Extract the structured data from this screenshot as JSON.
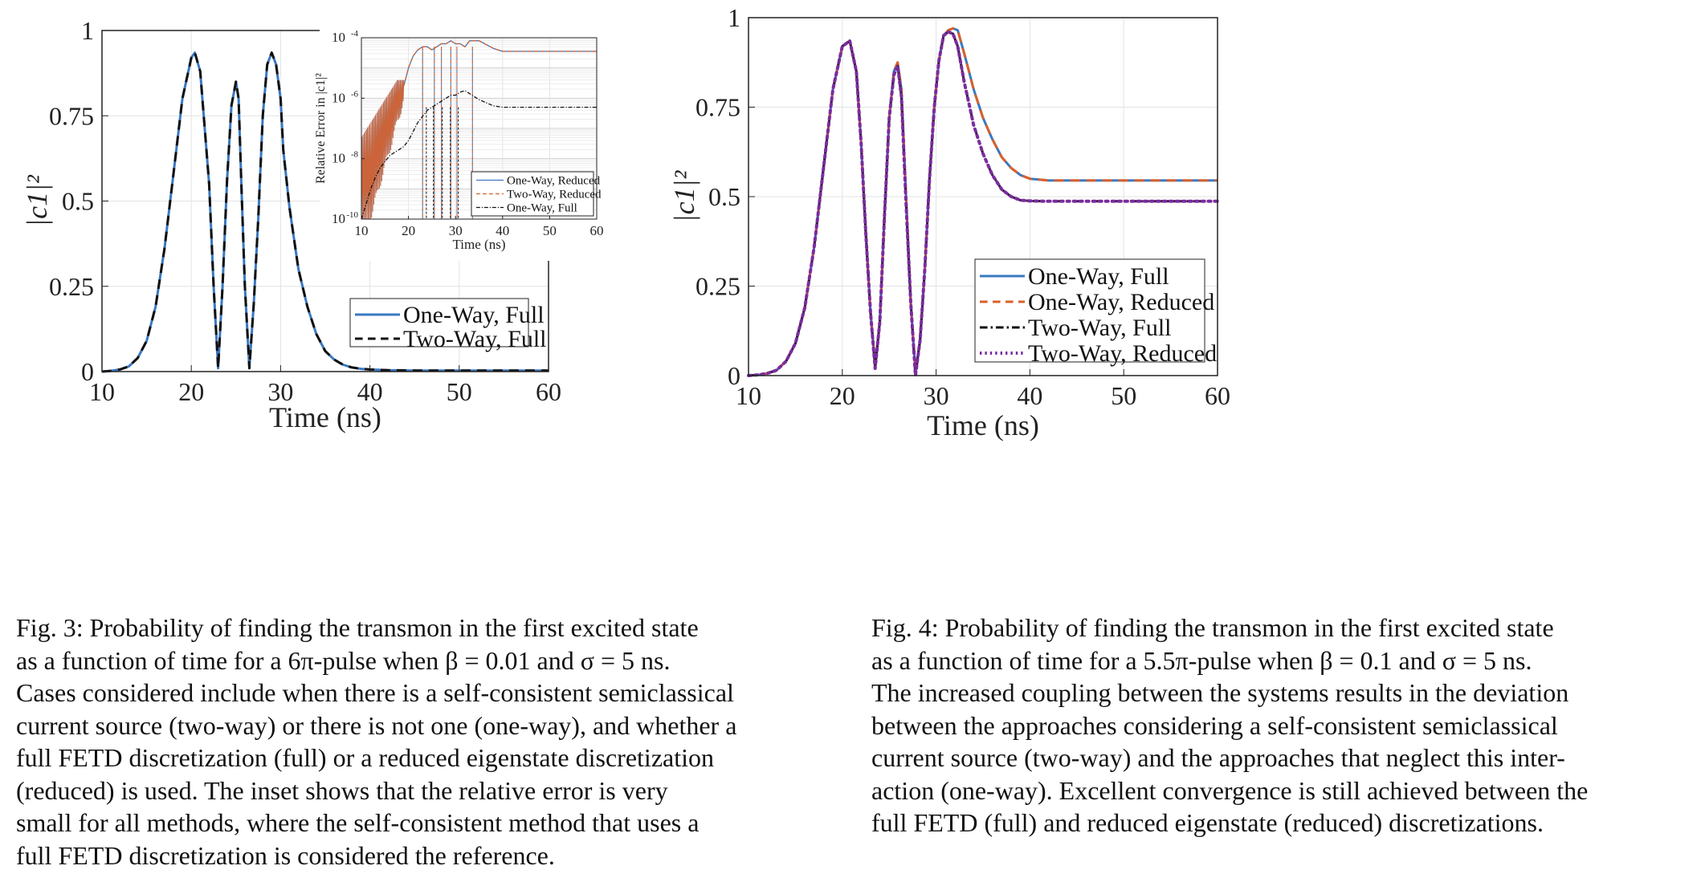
{
  "figures": [
    {
      "id": "fig3",
      "caption_lines": [
        "Fig. 3: Probability of finding the transmon in the first excited state",
        "as a function of time for a 6π-pulse when β = 0.01 and σ = 5 ns.",
        "Cases considered include when there is a self-consistent semiclassical",
        "current source (two-way) or there is not one (one-way), and whether a",
        "full FETD discretization (full) or a reduced eigenstate discretization",
        "(reduced) is used. The inset shows that the relative error is very",
        "small for all methods, where the self-consistent method that uses a",
        "full FETD discretization is considered the reference."
      ]
    },
    {
      "id": "fig4",
      "caption_lines": [
        "Fig. 4: Probability of finding the transmon in the first excited state",
        "as a function of time for a 5.5π-pulse when β = 0.1 and σ = 5 ns.",
        "The increased coupling between the systems results in the deviation",
        "between the approaches considering a self-consistent semiclassical",
        "current source (two-way) and the approaches that neglect this inter-",
        "action (one-way). Excellent convergence is still achieved between the",
        "full FETD (full) and reduced eigenstate (reduced) discretizations."
      ]
    }
  ],
  "colors": {
    "blue": "#3a78c0",
    "orange": "#d9602a",
    "black": "#111111",
    "purple": "#7b2c9e",
    "grid": "#e3e3e3"
  },
  "chart_data": [
    {
      "id": "fig3-main",
      "type": "line",
      "title": "",
      "xlabel": "Time (ns)",
      "ylabel": "|c1|²",
      "xlim": [
        10,
        60
      ],
      "ylim": [
        0,
        1
      ],
      "xticks": [
        10,
        20,
        30,
        40,
        50,
        60
      ],
      "yticks": [
        0,
        0.25,
        0.5,
        0.75,
        1
      ],
      "ytick_labels": [
        "0",
        "0.25",
        "0.5",
        "0.75",
        "1"
      ],
      "grid": true,
      "legend_position": "lower-right",
      "series": [
        {
          "name": "One-Way, Full",
          "style": "solid",
          "color": "#3a78c0",
          "x": [
            10,
            11,
            12,
            13,
            14,
            15,
            16,
            17,
            18,
            19,
            20,
            20.4,
            21,
            22,
            22.5,
            23,
            23.5,
            24,
            24.5,
            25,
            25.3,
            25.6,
            26,
            26.5,
            27,
            27.5,
            28,
            28.5,
            29,
            29.5,
            30,
            30.3,
            31,
            32,
            33,
            34,
            35,
            36,
            37,
            38,
            39,
            40,
            42,
            45,
            50,
            55,
            60
          ],
          "y": [
            0,
            0.002,
            0.006,
            0.015,
            0.04,
            0.09,
            0.19,
            0.36,
            0.58,
            0.8,
            0.92,
            0.935,
            0.88,
            0.55,
            0.25,
            0.01,
            0.25,
            0.56,
            0.78,
            0.85,
            0.8,
            0.55,
            0.25,
            0.01,
            0.2,
            0.45,
            0.75,
            0.9,
            0.935,
            0.9,
            0.8,
            0.65,
            0.48,
            0.3,
            0.19,
            0.11,
            0.06,
            0.035,
            0.02,
            0.012,
            0.008,
            0.006,
            0.004,
            0.003,
            0.003,
            0.003,
            0.003
          ]
        },
        {
          "name": "Two-Way, Full",
          "style": "dashed",
          "color": "#111111",
          "x": [
            10,
            11,
            12,
            13,
            14,
            15,
            16,
            17,
            18,
            19,
            20,
            20.4,
            21,
            22,
            22.5,
            23,
            23.5,
            24,
            24.5,
            25,
            25.3,
            25.6,
            26,
            26.5,
            27,
            27.5,
            28,
            28.5,
            29,
            29.5,
            30,
            30.3,
            31,
            32,
            33,
            34,
            35,
            36,
            37,
            38,
            39,
            40,
            42,
            45,
            50,
            55,
            60
          ],
          "y": [
            0,
            0.002,
            0.006,
            0.015,
            0.04,
            0.09,
            0.19,
            0.36,
            0.58,
            0.8,
            0.92,
            0.935,
            0.88,
            0.55,
            0.25,
            0.01,
            0.25,
            0.56,
            0.78,
            0.85,
            0.8,
            0.55,
            0.25,
            0.01,
            0.2,
            0.45,
            0.75,
            0.9,
            0.935,
            0.9,
            0.8,
            0.65,
            0.48,
            0.3,
            0.19,
            0.11,
            0.06,
            0.035,
            0.02,
            0.012,
            0.008,
            0.006,
            0.004,
            0.003,
            0.003,
            0.003,
            0.003
          ]
        }
      ]
    },
    {
      "id": "fig3-inset",
      "type": "line",
      "title": "",
      "xlabel": "Time (ns)",
      "ylabel": "Relative Error in |c1|²",
      "xlim": [
        10,
        60
      ],
      "yscale": "log",
      "ylim": [
        1e-10,
        0.0001
      ],
      "xticks": [
        10,
        20,
        30,
        40,
        50,
        60
      ],
      "yticks": [
        -10,
        -8,
        -6,
        -4
      ],
      "ytick_labels": [
        "10",
        "10",
        "10",
        "10"
      ],
      "ytick_exponents": [
        "-10",
        "-8",
        "-6",
        "-4"
      ],
      "grid": true,
      "legend_position": "lower-right",
      "series": [
        {
          "name": "One-Way, Reduced",
          "style": "solid",
          "color": "#3a78c0",
          "log10_y": {
            "x": [
              10,
              11,
              12,
              13,
              14,
              15,
              16,
              17,
              18,
              19,
              20,
              21,
              22,
              23,
              24,
              25,
              26,
              27,
              28,
              29,
              30,
              31,
              32,
              33,
              35,
              38,
              40,
              45,
              50,
              55,
              60
            ],
            "y": [
              -10,
              -7.2,
              -6.5,
              -6.2,
              -6.0,
              -5.9,
              -5.9,
              -5.8,
              -5.4,
              -5.6,
              -5.0,
              -4.6,
              -4.4,
              -4.3,
              -4.3,
              -4.4,
              -4.3,
              -4.2,
              -4.2,
              -4.1,
              -4.2,
              -4.2,
              -4.3,
              -4.1,
              -4.1,
              -4.35,
              -4.45,
              -4.45,
              -4.45,
              -4.45,
              -4.45
            ]
          }
        },
        {
          "name": "Two-Way, Reduced",
          "style": "dashed",
          "color": "#d9602a",
          "log10_y": {
            "x": [
              10,
              11,
              12,
              13,
              14,
              15,
              16,
              17,
              18,
              19,
              20,
              21,
              22,
              23,
              24,
              25,
              26,
              27,
              28,
              29,
              30,
              31,
              32,
              33,
              35,
              38,
              40,
              45,
              50,
              55,
              60
            ],
            "y": [
              -10,
              -7.2,
              -6.5,
              -6.2,
              -6.0,
              -5.9,
              -5.9,
              -5.8,
              -5.4,
              -5.6,
              -5.0,
              -4.6,
              -4.4,
              -4.3,
              -4.3,
              -4.4,
              -4.3,
              -4.2,
              -4.2,
              -4.1,
              -4.2,
              -4.2,
              -4.3,
              -4.1,
              -4.1,
              -4.35,
              -4.45,
              -4.45,
              -4.45,
              -4.45,
              -4.45
            ]
          }
        },
        {
          "name": "One-Way, Full",
          "style": "dashdot",
          "color": "#111111",
          "log10_y": {
            "x": [
              10,
              11,
              12,
              13,
              14,
              15,
              16,
              17,
              18,
              19,
              20,
              21,
              22,
              23,
              24,
              25,
              26,
              27,
              28,
              29,
              30,
              31,
              32,
              33,
              35,
              38,
              40,
              45,
              50,
              55,
              60
            ],
            "y": [
              -10,
              -9.5,
              -9.0,
              -8.6,
              -8.3,
              -8.1,
              -7.9,
              -7.8,
              -7.7,
              -7.6,
              -7.4,
              -7.1,
              -6.8,
              -6.6,
              -6.4,
              -6.3,
              -6.2,
              -6.1,
              -6.0,
              -5.9,
              -5.9,
              -5.8,
              -5.75,
              -5.85,
              -6.05,
              -6.25,
              -6.3,
              -6.3,
              -6.3,
              -6.3,
              -6.3
            ]
          }
        }
      ]
    },
    {
      "id": "fig4-main",
      "type": "line",
      "title": "",
      "xlabel": "Time (ns)",
      "ylabel": "|c1|²",
      "xlim": [
        10,
        60
      ],
      "ylim": [
        0,
        1
      ],
      "xticks": [
        10,
        20,
        30,
        40,
        50,
        60
      ],
      "yticks": [
        0,
        0.25,
        0.5,
        0.75,
        1
      ],
      "ytick_labels": [
        "0",
        "0.25",
        "0.5",
        "0.75",
        "1"
      ],
      "grid": true,
      "legend_position": "lower-right",
      "series": [
        {
          "name": "One-Way, Full",
          "style": "solid",
          "color": "#3a78c0",
          "x": [
            10,
            11,
            12,
            13,
            14,
            15,
            16,
            17,
            18,
            19,
            20,
            20.8,
            21.5,
            22,
            22.5,
            23,
            23.5,
            24,
            24.5,
            25,
            25.5,
            25.9,
            26.3,
            26.8,
            27.3,
            27.8,
            28.3,
            28.8,
            29.3,
            29.8,
            30.3,
            30.8,
            31.3,
            31.8,
            32.3,
            33,
            33.5,
            34,
            35,
            36,
            37,
            38,
            39,
            40,
            42,
            45,
            50,
            55,
            60
          ],
          "y": [
            0,
            0.002,
            0.006,
            0.015,
            0.04,
            0.09,
            0.19,
            0.36,
            0.58,
            0.8,
            0.92,
            0.935,
            0.85,
            0.65,
            0.4,
            0.18,
            0.03,
            0.15,
            0.45,
            0.72,
            0.85,
            0.875,
            0.8,
            0.5,
            0.2,
            0.01,
            0.1,
            0.3,
            0.55,
            0.75,
            0.88,
            0.95,
            0.965,
            0.97,
            0.965,
            0.9,
            0.85,
            0.8,
            0.72,
            0.66,
            0.61,
            0.58,
            0.56,
            0.55,
            0.545,
            0.545,
            0.545,
            0.545,
            0.545
          ]
        },
        {
          "name": "One-Way, Reduced",
          "style": "dashed",
          "color": "#d9602a",
          "x": [
            10,
            11,
            12,
            13,
            14,
            15,
            16,
            17,
            18,
            19,
            20,
            20.8,
            21.5,
            22,
            22.5,
            23,
            23.5,
            24,
            24.5,
            25,
            25.5,
            25.9,
            26.3,
            26.8,
            27.3,
            27.8,
            28.3,
            28.8,
            29.3,
            29.8,
            30.3,
            30.8,
            31.3,
            31.8,
            32.3,
            33,
            33.5,
            34,
            35,
            36,
            37,
            38,
            39,
            40,
            42,
            45,
            50,
            55,
            60
          ],
          "y": [
            0,
            0.002,
            0.006,
            0.015,
            0.04,
            0.09,
            0.19,
            0.36,
            0.58,
            0.8,
            0.92,
            0.935,
            0.85,
            0.65,
            0.4,
            0.18,
            0.03,
            0.15,
            0.45,
            0.72,
            0.85,
            0.875,
            0.8,
            0.5,
            0.2,
            0.01,
            0.1,
            0.3,
            0.55,
            0.75,
            0.88,
            0.95,
            0.965,
            0.97,
            0.965,
            0.9,
            0.85,
            0.8,
            0.72,
            0.66,
            0.61,
            0.58,
            0.56,
            0.55,
            0.545,
            0.545,
            0.545,
            0.545,
            0.545
          ]
        },
        {
          "name": "Two-Way, Full",
          "style": "dashdot",
          "color": "#111111",
          "x": [
            10,
            11,
            12,
            13,
            14,
            15,
            16,
            17,
            18,
            19,
            20,
            20.8,
            21.5,
            22,
            22.5,
            23,
            23.5,
            24,
            24.5,
            25,
            25.5,
            25.9,
            26.3,
            26.8,
            27.3,
            27.8,
            28.3,
            28.8,
            29.3,
            29.8,
            30.3,
            30.8,
            31.3,
            31.8,
            32.3,
            33,
            33.5,
            34,
            35,
            36,
            37,
            38,
            39,
            40,
            42,
            45,
            50,
            55,
            60
          ],
          "y": [
            0,
            0.002,
            0.006,
            0.015,
            0.04,
            0.09,
            0.19,
            0.36,
            0.58,
            0.8,
            0.92,
            0.935,
            0.85,
            0.65,
            0.4,
            0.18,
            0.02,
            0.15,
            0.45,
            0.72,
            0.84,
            0.865,
            0.78,
            0.48,
            0.2,
            0.0,
            0.1,
            0.3,
            0.55,
            0.75,
            0.88,
            0.95,
            0.96,
            0.955,
            0.92,
            0.82,
            0.76,
            0.7,
            0.62,
            0.56,
            0.52,
            0.5,
            0.49,
            0.488,
            0.487,
            0.487,
            0.487,
            0.487,
            0.487
          ]
        },
        {
          "name": "Two-Way, Reduced",
          "style": "dotted",
          "color": "#7b2c9e",
          "x": [
            10,
            11,
            12,
            13,
            14,
            15,
            16,
            17,
            18,
            19,
            20,
            20.8,
            21.5,
            22,
            22.5,
            23,
            23.5,
            24,
            24.5,
            25,
            25.5,
            25.9,
            26.3,
            26.8,
            27.3,
            27.8,
            28.3,
            28.8,
            29.3,
            29.8,
            30.3,
            30.8,
            31.3,
            31.8,
            32.3,
            33,
            33.5,
            34,
            35,
            36,
            37,
            38,
            39,
            40,
            42,
            45,
            50,
            55,
            60
          ],
          "y": [
            0,
            0.002,
            0.006,
            0.015,
            0.04,
            0.09,
            0.19,
            0.36,
            0.58,
            0.8,
            0.92,
            0.935,
            0.85,
            0.65,
            0.4,
            0.18,
            0.02,
            0.15,
            0.45,
            0.72,
            0.84,
            0.865,
            0.78,
            0.48,
            0.2,
            0.0,
            0.1,
            0.3,
            0.55,
            0.75,
            0.88,
            0.95,
            0.96,
            0.955,
            0.92,
            0.82,
            0.76,
            0.7,
            0.62,
            0.56,
            0.52,
            0.5,
            0.49,
            0.488,
            0.487,
            0.487,
            0.487,
            0.487,
            0.487
          ]
        }
      ]
    }
  ]
}
